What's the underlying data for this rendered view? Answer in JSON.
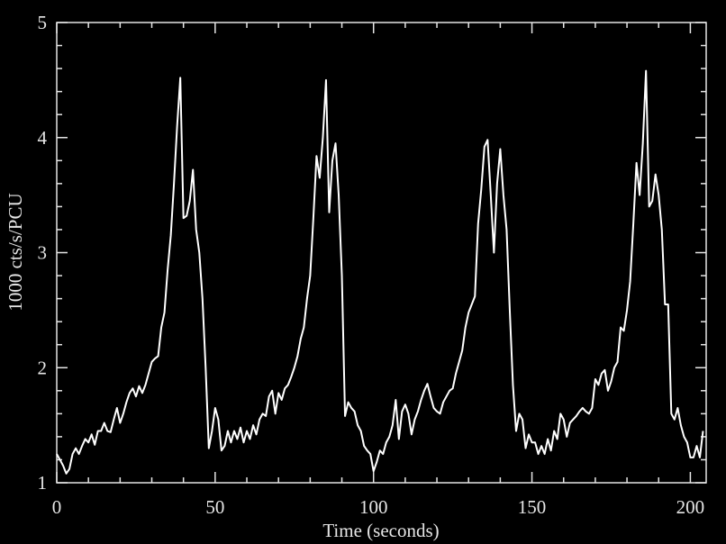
{
  "chart_data": {
    "type": "line",
    "xlabel": "Time (seconds)",
    "ylabel": "1000 cts/s/PCU",
    "xlim": [
      0,
      205
    ],
    "ylim": [
      1,
      5
    ],
    "xticks": [
      0,
      50,
      100,
      150,
      200
    ],
    "yticks": [
      1,
      2,
      3,
      4,
      5
    ],
    "x": [
      0,
      1,
      2,
      3,
      4,
      5,
      6,
      7,
      8,
      9,
      10,
      11,
      12,
      13,
      14,
      15,
      16,
      17,
      18,
      19,
      20,
      21,
      22,
      23,
      24,
      25,
      26,
      27,
      28,
      29,
      30,
      31,
      32,
      33,
      34,
      35,
      36,
      37,
      38,
      39,
      40,
      41,
      42,
      43,
      44,
      45,
      46,
      47,
      48,
      49,
      50,
      51,
      52,
      53,
      54,
      55,
      56,
      57,
      58,
      59,
      60,
      61,
      62,
      63,
      64,
      65,
      66,
      67,
      68,
      69,
      70,
      71,
      72,
      73,
      74,
      75,
      76,
      77,
      78,
      79,
      80,
      81,
      82,
      83,
      84,
      85,
      86,
      87,
      88,
      89,
      90,
      91,
      92,
      93,
      94,
      95,
      96,
      97,
      98,
      99,
      100,
      101,
      102,
      103,
      104,
      105,
      106,
      107,
      108,
      109,
      110,
      111,
      112,
      113,
      114,
      115,
      116,
      117,
      118,
      119,
      120,
      121,
      122,
      123,
      124,
      125,
      126,
      127,
      128,
      129,
      130,
      131,
      132,
      133,
      134,
      135,
      136,
      137,
      138,
      139,
      140,
      141,
      142,
      143,
      144,
      145,
      146,
      147,
      148,
      149,
      150,
      151,
      152,
      153,
      154,
      155,
      156,
      157,
      158,
      159,
      160,
      161,
      162,
      163,
      164,
      165,
      166,
      167,
      168,
      169,
      170,
      171,
      172,
      173,
      174,
      175,
      176,
      177,
      178,
      179,
      180,
      181,
      182,
      183,
      184,
      185,
      186,
      187,
      188,
      189,
      190,
      191,
      192,
      193,
      194,
      195,
      196,
      197,
      198,
      199,
      200,
      201,
      202,
      203,
      204
    ],
    "series": [
      {
        "color": "#ffffff",
        "values": [
          1.25,
          1.2,
          1.15,
          1.08,
          1.12,
          1.25,
          1.3,
          1.25,
          1.32,
          1.38,
          1.35,
          1.42,
          1.33,
          1.45,
          1.45,
          1.52,
          1.45,
          1.44,
          1.55,
          1.65,
          1.52,
          1.6,
          1.7,
          1.78,
          1.82,
          1.75,
          1.84,
          1.78,
          1.85,
          1.95,
          2.05,
          2.08,
          2.1,
          2.35,
          2.48,
          2.85,
          3.15,
          3.6,
          4.1,
          4.52,
          3.3,
          3.32,
          3.45,
          3.72,
          3.2,
          3.0,
          2.6,
          2.0,
          1.3,
          1.45,
          1.65,
          1.55,
          1.28,
          1.32,
          1.45,
          1.35,
          1.45,
          1.38,
          1.48,
          1.35,
          1.45,
          1.38,
          1.5,
          1.42,
          1.55,
          1.6,
          1.58,
          1.75,
          1.8,
          1.6,
          1.78,
          1.72,
          1.82,
          1.85,
          1.92,
          2.0,
          2.1,
          2.25,
          2.35,
          2.6,
          2.8,
          3.3,
          3.84,
          3.65,
          4.0,
          4.5,
          3.35,
          3.8,
          3.95,
          3.5,
          2.8,
          1.58,
          1.7,
          1.65,
          1.62,
          1.5,
          1.45,
          1.32,
          1.28,
          1.25,
          1.1,
          1.18,
          1.28,
          1.25,
          1.35,
          1.4,
          1.5,
          1.72,
          1.38,
          1.62,
          1.68,
          1.6,
          1.42,
          1.55,
          1.62,
          1.72,
          1.8,
          1.86,
          1.75,
          1.65,
          1.62,
          1.6,
          1.7,
          1.75,
          1.8,
          1.82,
          1.95,
          2.05,
          2.15,
          2.35,
          2.48,
          2.55,
          2.62,
          3.25,
          3.55,
          3.92,
          3.98,
          3.5,
          3.0,
          3.6,
          3.9,
          3.5,
          3.2,
          2.5,
          1.85,
          1.45,
          1.6,
          1.55,
          1.3,
          1.42,
          1.35,
          1.35,
          1.25,
          1.32,
          1.25,
          1.38,
          1.28,
          1.45,
          1.38,
          1.6,
          1.55,
          1.4,
          1.52,
          1.55,
          1.58,
          1.62,
          1.65,
          1.62,
          1.6,
          1.65,
          1.9,
          1.85,
          1.95,
          1.98,
          1.8,
          1.88,
          2.0,
          2.05,
          2.35,
          2.32,
          2.5,
          2.75,
          3.25,
          3.78,
          3.5,
          3.95,
          4.58,
          3.4,
          3.45,
          3.68,
          3.5,
          3.2,
          2.55,
          2.55,
          1.6,
          1.55,
          1.65,
          1.5,
          1.4,
          1.35,
          1.22,
          1.22,
          1.32,
          1.22,
          1.45
        ]
      }
    ]
  }
}
